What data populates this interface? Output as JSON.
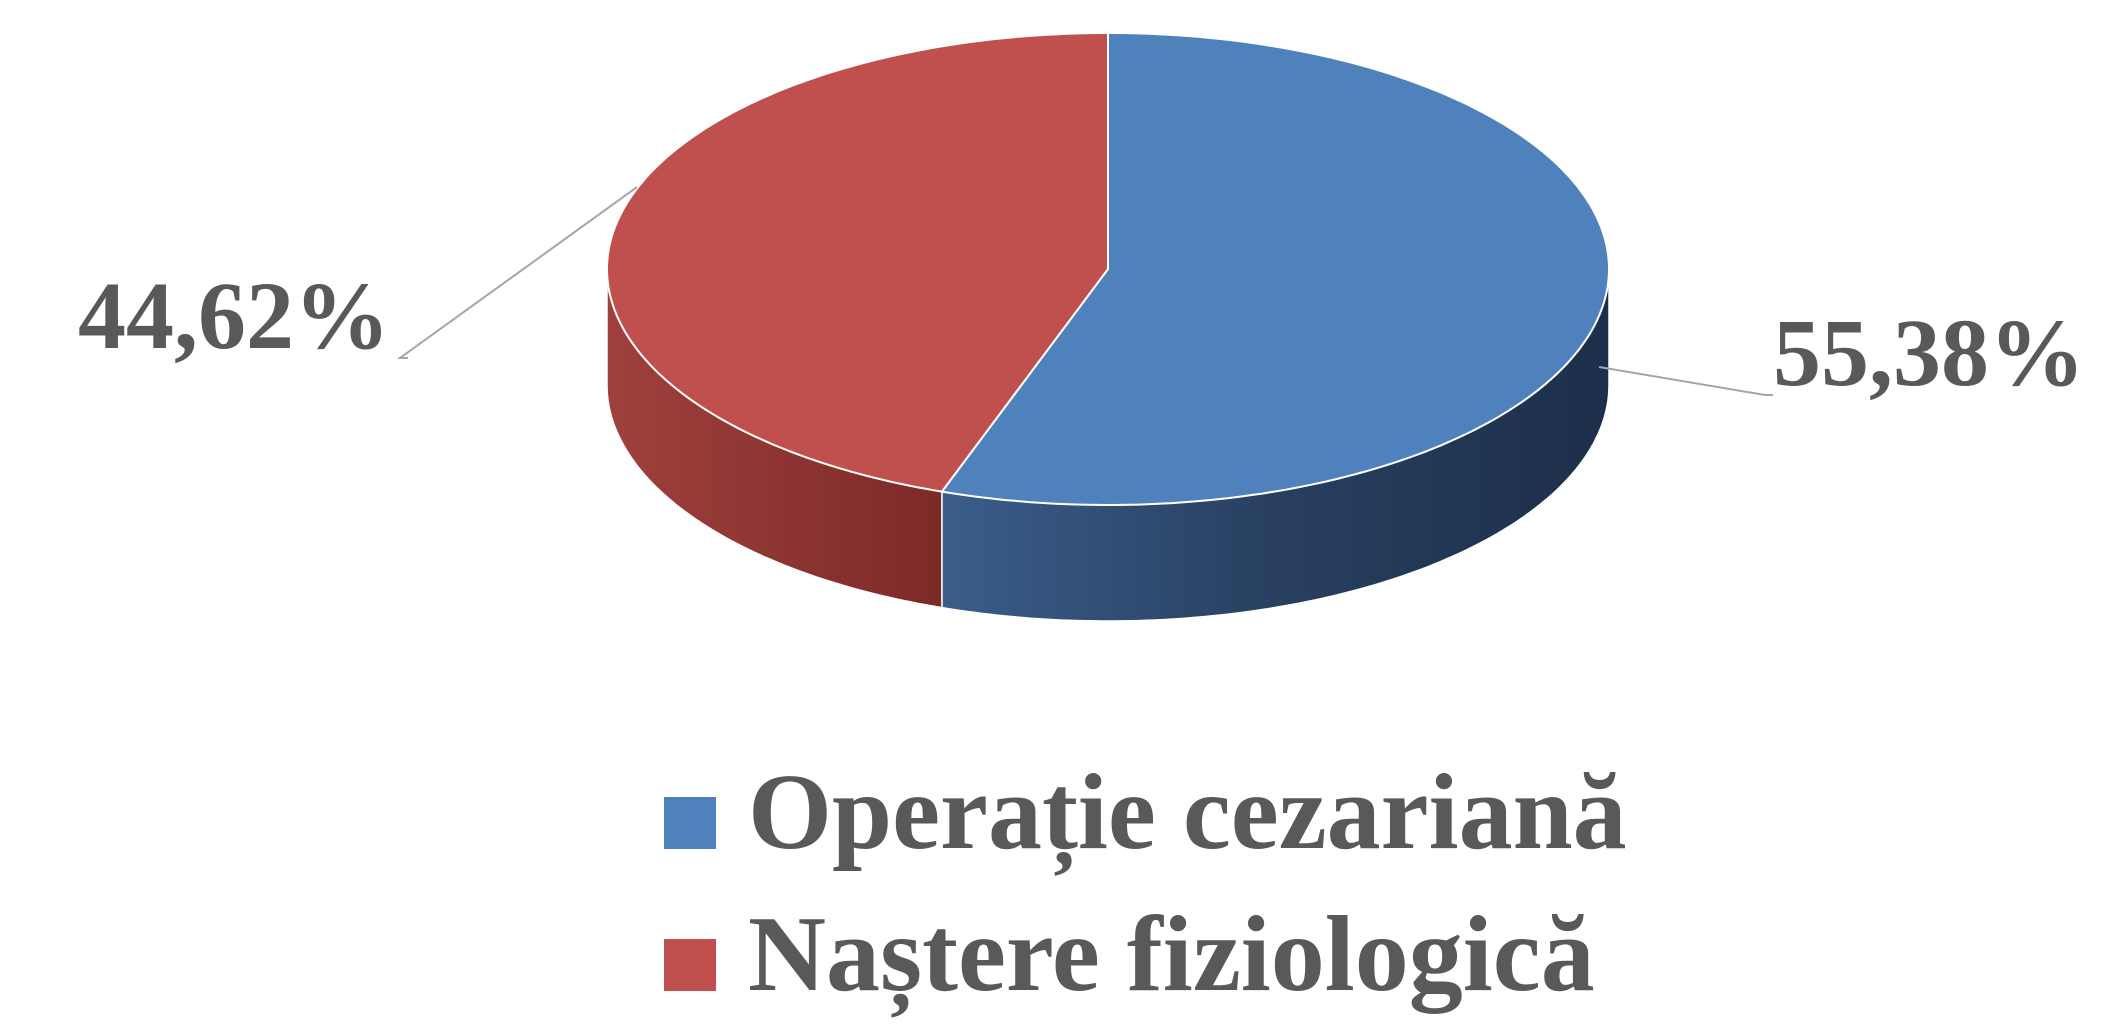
{
  "chart_data": {
    "type": "pie",
    "categories": [
      "Operație cezariană",
      "Naștere fiziologică"
    ],
    "values": [
      55.38,
      44.62
    ],
    "value_labels": [
      "55,38%",
      "44,62%"
    ],
    "colors": [
      "#4f81bd",
      "#c0504d"
    ],
    "three_d": true,
    "legend": "bottom"
  }
}
